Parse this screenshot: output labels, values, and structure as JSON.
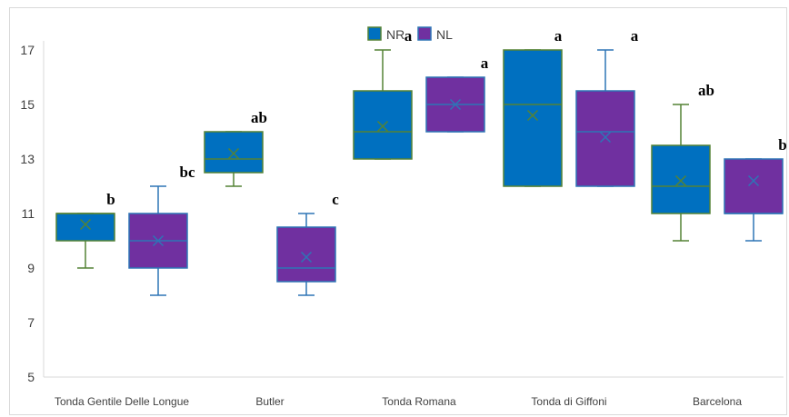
{
  "chart_data": {
    "type": "box",
    "title": "",
    "xlabel": "",
    "ylabel": "",
    "ylim": [
      5,
      17
    ],
    "yticks": [
      5,
      7,
      9,
      11,
      13,
      15,
      17
    ],
    "grid": false,
    "legend_position": "top-center",
    "categories": [
      "Tonda Gentile Delle Longue",
      "Butler",
      "Tonda Romana",
      "Tonda di Giffoni",
      "Barcelona"
    ],
    "series": [
      {
        "name": "NR",
        "color": "#0070C0",
        "edge_color": "#548235",
        "boxes": [
          {
            "min": 9,
            "q1": 10,
            "median": 11,
            "q3": 11,
            "max": 11,
            "mean": 10.6,
            "label": "b"
          },
          {
            "min": 12,
            "q1": 12.5,
            "median": 13,
            "q3": 14,
            "max": 14,
            "mean": 13.2,
            "label": "ab"
          },
          {
            "min": 13,
            "q1": 13,
            "median": 14,
            "q3": 15.5,
            "max": 17,
            "mean": 14.2,
            "label": "a"
          },
          {
            "min": 12,
            "q1": 12,
            "median": 15,
            "q3": 17,
            "max": 17,
            "mean": 14.6,
            "label": "a"
          },
          {
            "min": 10,
            "q1": 11,
            "median": 12,
            "q3": 13.5,
            "max": 15,
            "mean": 12.2,
            "label": "ab"
          }
        ]
      },
      {
        "name": "NL",
        "color": "#7030A0",
        "edge_color": "#2E75B6",
        "boxes": [
          {
            "min": 8,
            "q1": 9,
            "median": 10,
            "q3": 11,
            "max": 12,
            "mean": 10.0,
            "label": "bc"
          },
          {
            "min": 8,
            "q1": 8.5,
            "median": 9,
            "q3": 10.5,
            "max": 11,
            "mean": 9.4,
            "label": "c"
          },
          {
            "min": 14,
            "q1": 14,
            "median": 15,
            "q3": 16,
            "max": 16,
            "mean": 15.0,
            "label": "a"
          },
          {
            "min": 12,
            "q1": 12,
            "median": 14,
            "q3": 15.5,
            "max": 17,
            "mean": 13.8,
            "label": "a"
          },
          {
            "min": 10,
            "q1": 11,
            "median": 11,
            "q3": 13,
            "max": 13,
            "mean": 12.2,
            "label": "b"
          }
        ]
      }
    ]
  }
}
